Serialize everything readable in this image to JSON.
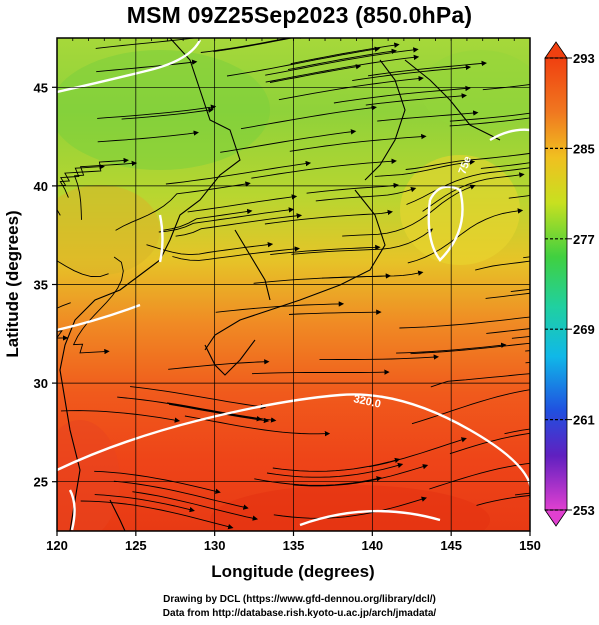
{
  "title": "MSM 09Z25Sep2023 (850.0hPa)",
  "axes": {
    "xlabel": "Longitude (degrees)",
    "ylabel": "Latitude  (degrees)",
    "xticks": [
      "120",
      "125",
      "130",
      "135",
      "140",
      "145",
      "150"
    ],
    "yticks": [
      "25",
      "30",
      "35",
      "40",
      "45"
    ],
    "xlim": [
      120,
      150
    ],
    "ylim": [
      22.5,
      47.5
    ]
  },
  "colorbar": {
    "ticks": [
      "293",
      "285",
      "277",
      "269",
      "261",
      "253"
    ],
    "range": [
      253,
      293
    ],
    "colors": [
      "#e040d0",
      "#2030c0",
      "#10b8e8",
      "#20d060",
      "#f0e020",
      "#f04010"
    ]
  },
  "contours": {
    "labels": [
      "320.0",
      "75e"
    ]
  },
  "credits": {
    "line1": "Drawing by DCL (https://www.gfd-dennou.org/library/dcl/)",
    "line2": "Data from http://database.rish.kyoto-u.ac.jp/arch/jmadata/"
  },
  "chart_data": {
    "type": "heatmap",
    "title": "MSM 09Z25Sep2023 (850.0hPa)",
    "xlabel": "Longitude (degrees)",
    "ylabel": "Latitude  (degrees)",
    "xlim": [
      120,
      150
    ],
    "ylim": [
      22.5,
      47.5
    ],
    "colorbar_range": [
      253,
      293
    ],
    "colorbar_ticks": [
      293,
      285,
      277,
      269,
      261,
      253
    ],
    "grid": true,
    "overlay": "streamlines with arrows; white contour lines; coastlines"
  }
}
